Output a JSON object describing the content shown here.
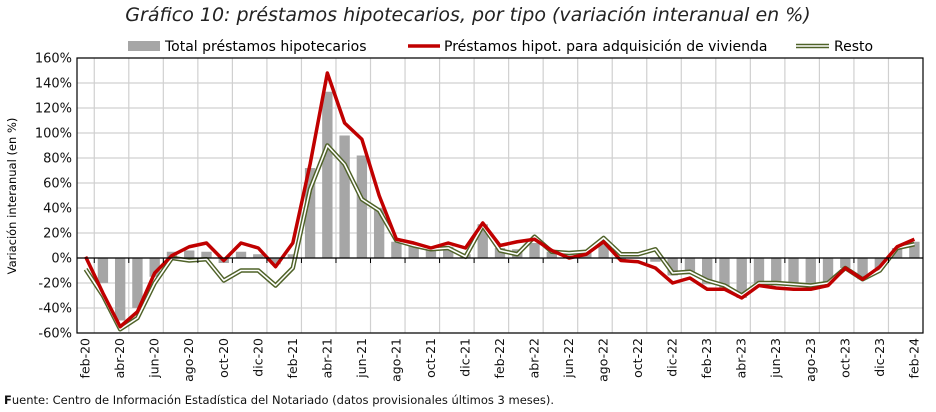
{
  "title": "Gráfico 10: préstamos hipotecarios, por tipo (variación interanual en %)",
  "footer": {
    "bold_prefix": "F",
    "text": "uente: Centro de Información Estadística del Notariado (datos provisionales últimos 3 meses)."
  },
  "colors": {
    "total": "#a6a6a6",
    "vivienda": "#c00000",
    "resto_outer": "#4f6228",
    "resto_inner": "#ffffff",
    "grid": "#d0d0d0"
  },
  "chart_data": {
    "type": "bar+line",
    "title": "Gráfico 10: préstamos hipotecarios, por tipo (variación interanual en %)",
    "xlabel": "",
    "ylabel": "Variación interanual (en %)",
    "ylim": [
      -60,
      160
    ],
    "yticks": [
      -60,
      -40,
      -20,
      0,
      20,
      40,
      60,
      80,
      100,
      120,
      140,
      160
    ],
    "ytick_labels": [
      "-60%",
      "-40%",
      "-20%",
      "0%",
      "20%",
      "40%",
      "60%",
      "80%",
      "100%",
      "120%",
      "140%",
      "160%"
    ],
    "grid": true,
    "legend_position": "top",
    "x": [
      "feb-20",
      "mar-20",
      "abr-20",
      "may-20",
      "jun-20",
      "jul-20",
      "ago-20",
      "sep-20",
      "oct-20",
      "nov-20",
      "dic-20",
      "ene-21",
      "feb-21",
      "mar-21",
      "abr-21",
      "may-21",
      "jun-21",
      "jul-21",
      "ago-21",
      "sep-21",
      "oct-21",
      "nov-21",
      "dic-21",
      "ene-22",
      "feb-22",
      "mar-22",
      "abr-22",
      "may-22",
      "jun-22",
      "jul-22",
      "ago-22",
      "sep-22",
      "oct-22",
      "nov-22",
      "dic-22",
      "ene-23",
      "feb-23",
      "mar-23",
      "abr-23",
      "may-23",
      "jun-23",
      "jul-23",
      "ago-23",
      "sep-23",
      "oct-23",
      "nov-23",
      "dic-23",
      "ene-24",
      "feb-24"
    ],
    "xtick_labels": [
      "feb-20",
      "abr-20",
      "jun-20",
      "ago-20",
      "oct-20",
      "dic-20",
      "feb-21",
      "abr-21",
      "jun-21",
      "ago-21",
      "oct-21",
      "dic-21",
      "feb-22",
      "abr-22",
      "jun-22",
      "ago-22",
      "oct-22",
      "dic-22",
      "feb-23",
      "abr-23",
      "jun-23",
      "ago-23",
      "oct-23",
      "dic-23",
      "feb-24"
    ],
    "series": [
      {
        "name": "Total préstamos hipotecarios",
        "kind": "bar",
        "values": [
          0,
          -20,
          -50,
          -40,
          -15,
          5,
          6,
          5,
          -4,
          5,
          3,
          -5,
          3,
          72,
          133,
          98,
          82,
          40,
          13,
          10,
          7,
          9,
          3,
          27,
          8,
          7,
          12,
          5,
          2,
          4,
          13,
          -1,
          0,
          -3,
          -14,
          -13,
          -21,
          -24,
          -32,
          -20,
          -22,
          -22,
          -24,
          -20,
          -8,
          -17,
          -8,
          8,
          13
        ]
      },
      {
        "name": "Préstamos hipot. para adquisición de vivienda",
        "kind": "line",
        "values": [
          1,
          -28,
          -55,
          -43,
          -12,
          2,
          9,
          12,
          -2,
          12,
          8,
          -7,
          12,
          75,
          148,
          108,
          95,
          50,
          15,
          12,
          8,
          12,
          8,
          28,
          10,
          13,
          15,
          6,
          0,
          3,
          13,
          -2,
          -3,
          -8,
          -20,
          -16,
          -25,
          -25,
          -32,
          -22,
          -24,
          -25,
          -25,
          -22,
          -8,
          -17,
          -7,
          9,
          15
        ]
      },
      {
        "name": "Resto",
        "kind": "double-line",
        "values": [
          -9,
          -30,
          -57,
          -48,
          -20,
          0,
          -2,
          -1,
          -18,
          -10,
          -10,
          -22,
          -8,
          55,
          90,
          75,
          47,
          38,
          14,
          10,
          7,
          8,
          1,
          26,
          6,
          3,
          17,
          5,
          4,
          5,
          16,
          3,
          3,
          7,
          -12,
          -11,
          -18,
          -22,
          -30,
          -20,
          -20,
          -21,
          -22,
          -20,
          -8,
          -17,
          -10,
          8,
          11
        ]
      }
    ]
  }
}
